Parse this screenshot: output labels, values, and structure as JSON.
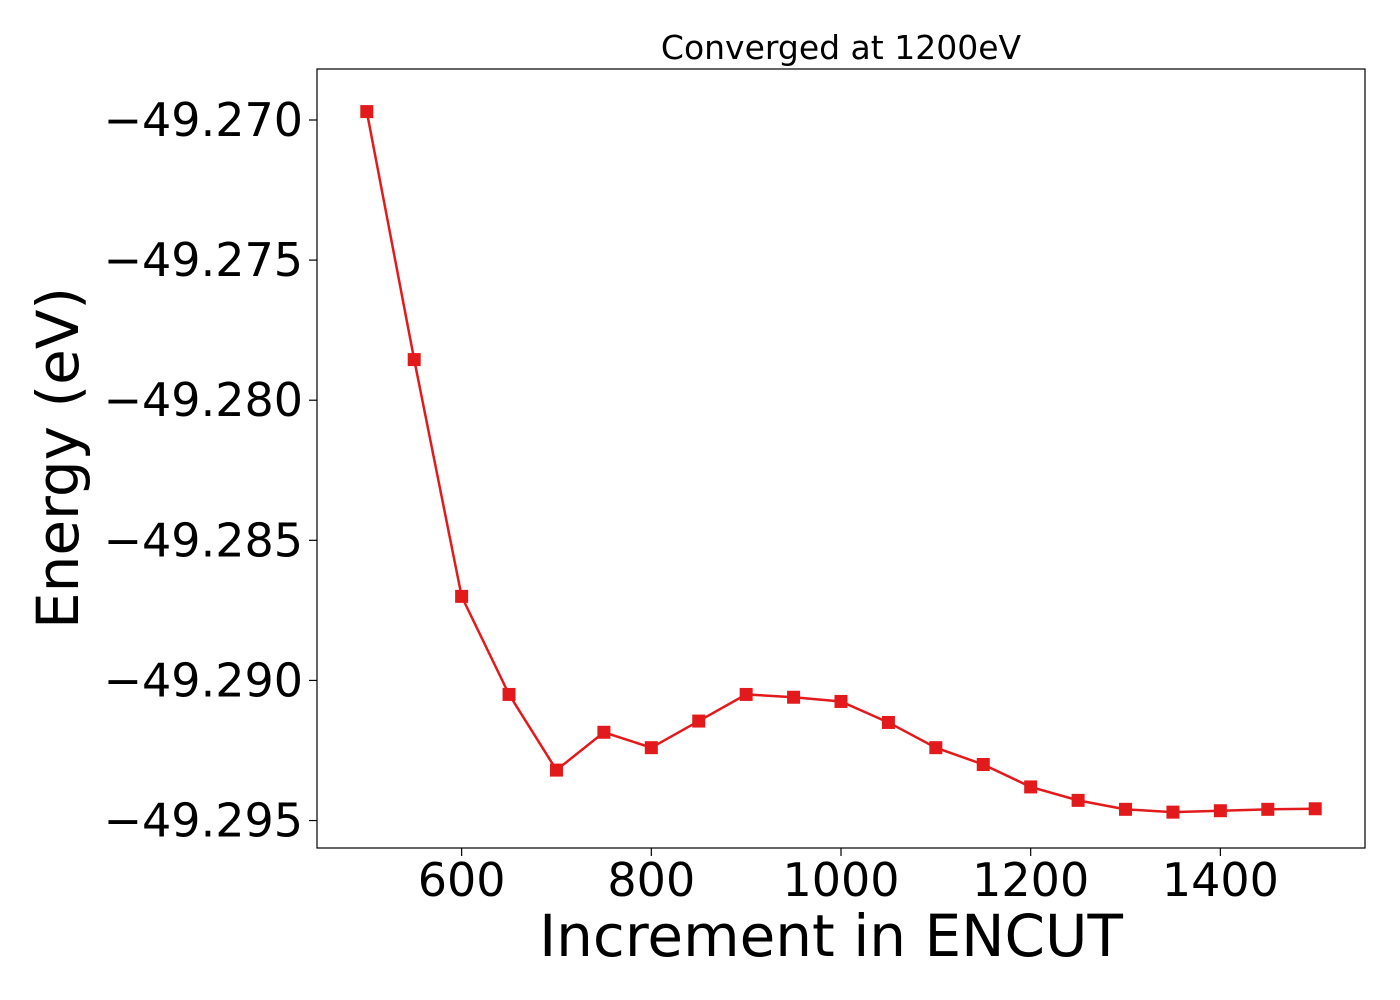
{
  "chart_data": {
    "type": "line",
    "title": "Converged at 1200eV",
    "xlabel": "Increment in ENCUT",
    "ylabel": "Energy (eV)",
    "xlim": [
      447.5,
      1552.5
    ],
    "ylim": [
      -49.29598,
      -49.26818
    ],
    "xticks": [
      600,
      800,
      1000,
      1200,
      1400
    ],
    "xtick_labels": [
      "600",
      "800",
      "1000",
      "1200",
      "1400"
    ],
    "yticks": [
      -49.27,
      -49.275,
      -49.28,
      -49.285,
      -49.29,
      -49.295
    ],
    "ytick_labels": [
      "−49.270",
      "−49.275",
      "−49.280",
      "−49.285",
      "−49.290",
      "−49.295"
    ],
    "grid": false,
    "series": [
      {
        "color": "#e31a1c",
        "marker": "square",
        "x": [
          500,
          550,
          600,
          650,
          700,
          750,
          800,
          850,
          900,
          950,
          1000,
          1050,
          1100,
          1150,
          1200,
          1250,
          1300,
          1350,
          1400,
          1450,
          1500
        ],
        "y": [
          -49.2697,
          -49.27855,
          -49.287,
          -49.2905,
          -49.2932,
          -49.29185,
          -49.2924,
          -49.29145,
          -49.2905,
          -49.2906,
          -49.29075,
          -49.2915,
          -49.2924,
          -49.293,
          -49.2938,
          -49.29428,
          -49.2946,
          -49.2947,
          -49.29465,
          -49.2946,
          -49.29458
        ]
      }
    ]
  }
}
